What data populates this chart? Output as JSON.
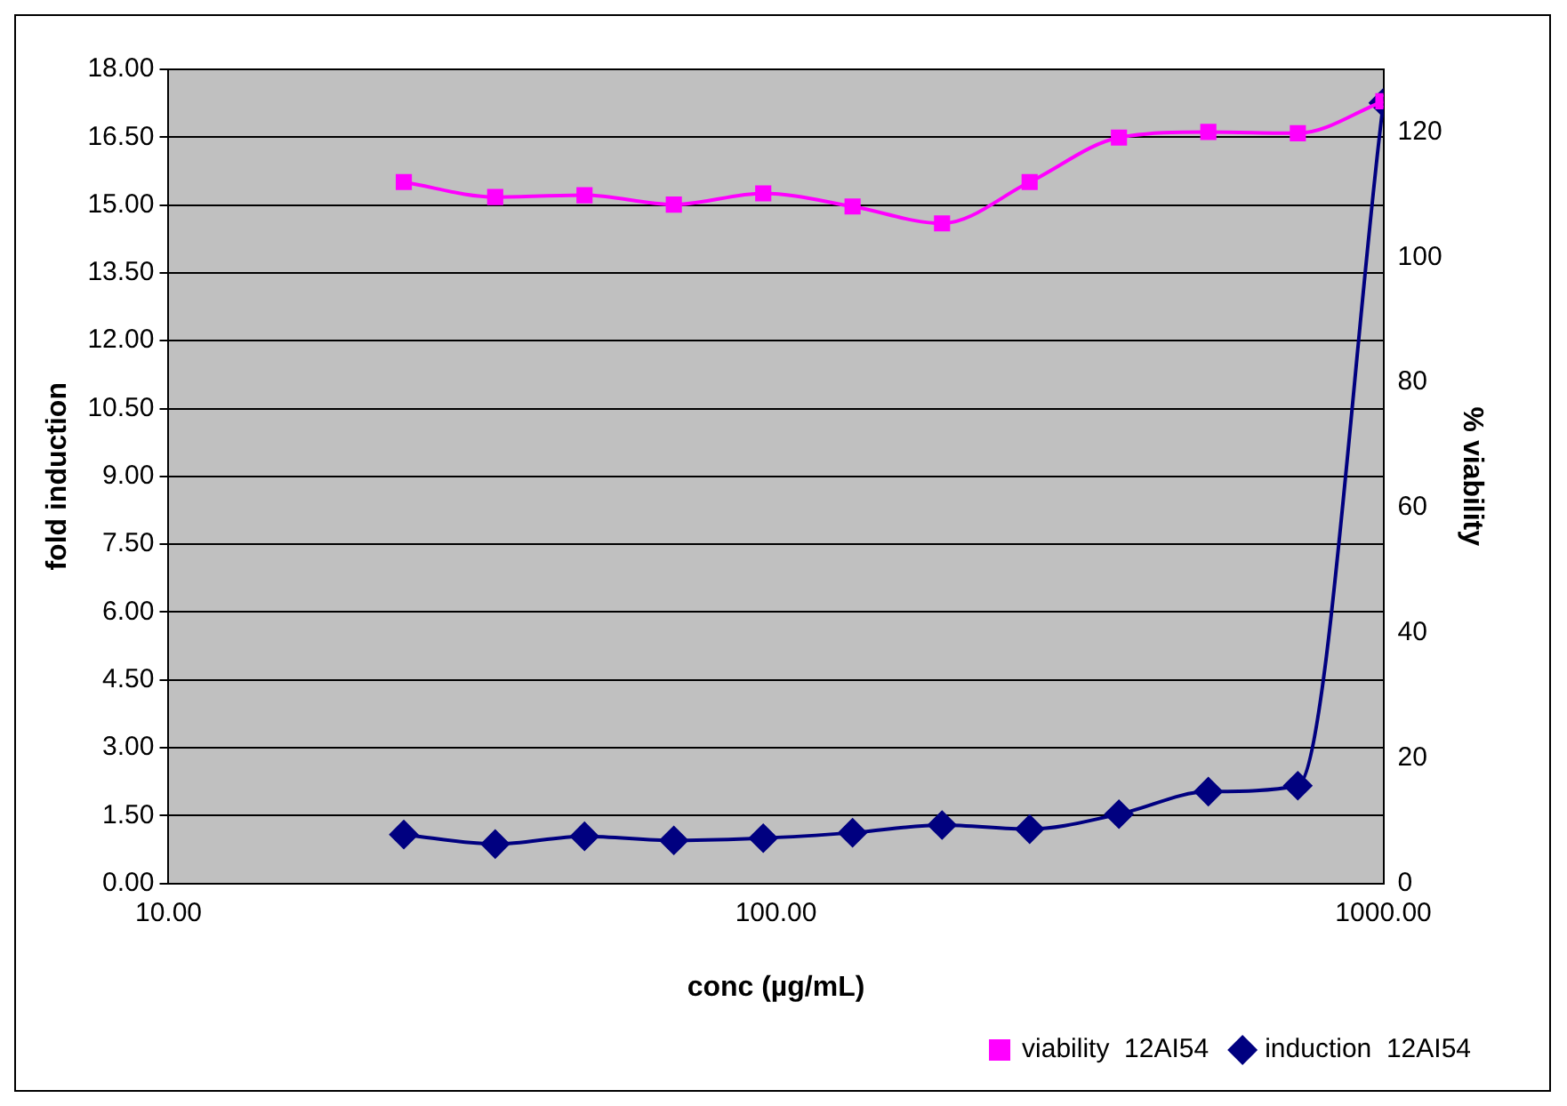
{
  "chart_data": {
    "type": "line",
    "xlabel": "conc (µg/mL)",
    "ylabel": "fold induction",
    "y2label": "% viability",
    "log": "x",
    "xlim": [
      10,
      1000
    ],
    "xticks": [
      {
        "value": 10,
        "label": "10.00"
      },
      {
        "value": 100,
        "label": "100.00"
      },
      {
        "value": 1000,
        "label": "1000.00"
      }
    ],
    "ylim": [
      0,
      18
    ],
    "yticks": [
      {
        "value": 0,
        "label": "0.00"
      },
      {
        "value": 1.5,
        "label": "1.50"
      },
      {
        "value": 3,
        "label": "3.00"
      },
      {
        "value": 4.5,
        "label": "4.50"
      },
      {
        "value": 6,
        "label": "6.00"
      },
      {
        "value": 7.5,
        "label": "7.50"
      },
      {
        "value": 9,
        "label": "9.00"
      },
      {
        "value": 10.5,
        "label": "10.50"
      },
      {
        "value": 12,
        "label": "12.00"
      },
      {
        "value": 13.5,
        "label": "13.50"
      },
      {
        "value": 15,
        "label": "15.00"
      },
      {
        "value": 16.5,
        "label": "16.50"
      },
      {
        "value": 18,
        "label": "18.00"
      }
    ],
    "y2lim": [
      0,
      130
    ],
    "y2ticks": [
      0,
      20,
      40,
      60,
      80,
      100,
      120
    ],
    "x": [
      24.4,
      34.5,
      48.4,
      67.9,
      95.3,
      133.7,
      187.7,
      261.6,
      367,
      515,
      723,
      1000
    ],
    "series": [
      {
        "name": "induction  12AI54",
        "color": "#000080",
        "marker": "diamond",
        "values": [
          1.08,
          0.87,
          1.04,
          0.95,
          1.0,
          1.12,
          1.29,
          1.2,
          1.53,
          2.03,
          2.16,
          17.26
        ]
      },
      {
        "name": "viability  12AI54",
        "color": "#ff00ff",
        "marker": "square",
        "axis": "y2",
        "values": [
          112,
          109.6,
          109.9,
          108.4,
          110.2,
          108.1,
          105.4,
          112,
          119.1,
          120,
          119.8,
          124.9
        ]
      }
    ],
    "grid": "y",
    "legend": "bottom right",
    "line_style": "solid"
  }
}
